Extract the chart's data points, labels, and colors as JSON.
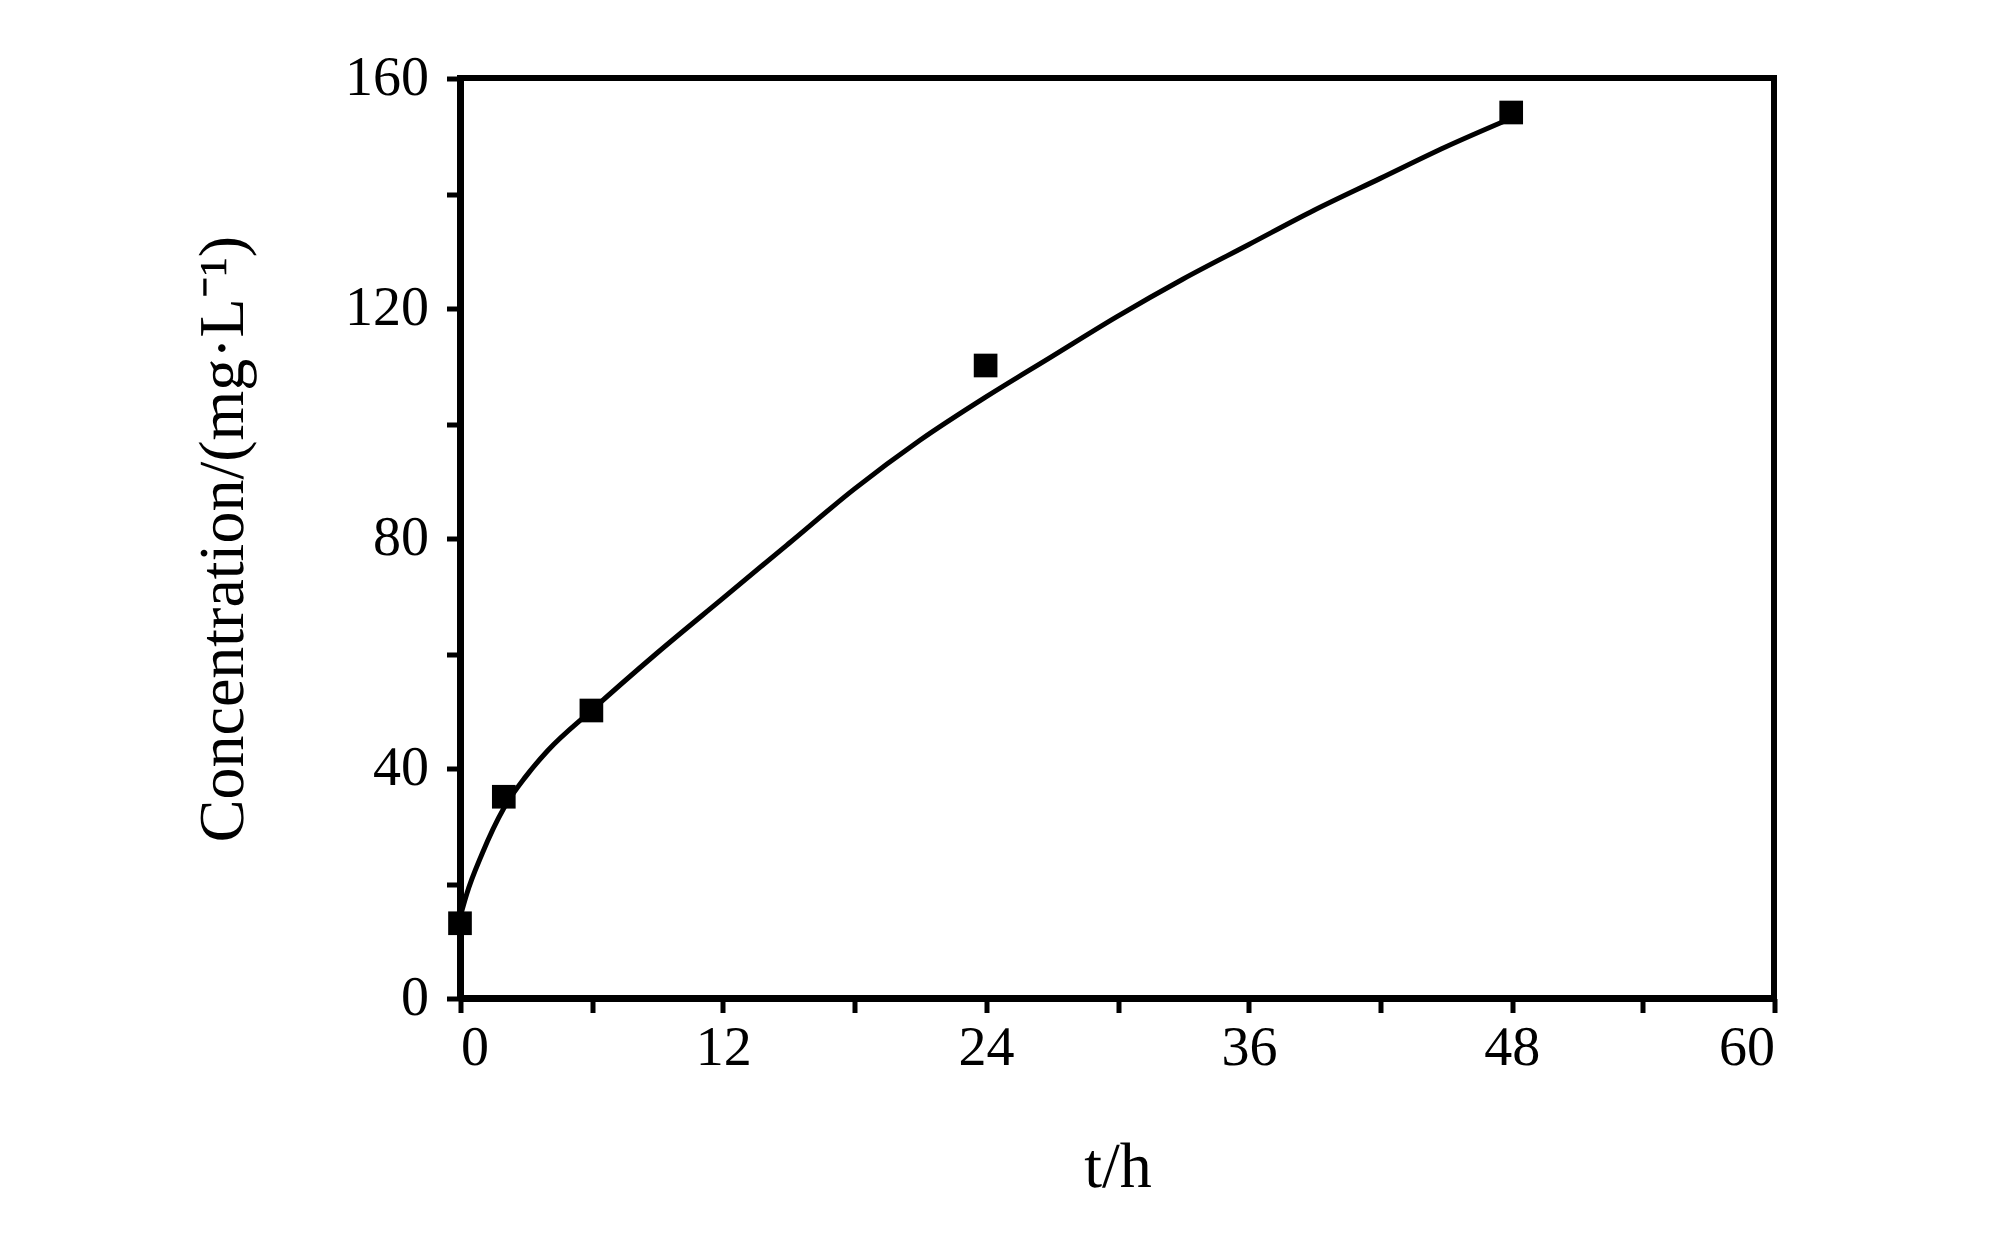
{
  "chart_data": {
    "type": "scatter",
    "xlabel": "t/h",
    "ylabel": "Concentration/(mg·L⁻¹)",
    "xlim": [
      0,
      60
    ],
    "ylim": [
      0,
      160
    ],
    "xticks": [
      0,
      {
        "value": 6,
        "label": null
      },
      12,
      {
        "value": 18,
        "label": null
      },
      24,
      {
        "value": 30,
        "label": null
      },
      36,
      {
        "value": 42,
        "label": null
      },
      48,
      {
        "value": 54,
        "label": null
      },
      60
    ],
    "yticks": [
      0,
      {
        "value": 20,
        "label": null
      },
      40,
      {
        "value": 60,
        "label": null
      },
      80,
      {
        "value": 100,
        "label": null
      },
      120,
      {
        "value": 140,
        "label": null
      },
      160
    ],
    "series": [
      {
        "type": "line",
        "color": "#000000",
        "line_style": "solid",
        "marker": "none",
        "x": [
          0,
          0.3,
          1,
          2,
          3,
          4,
          6,
          9,
          12,
          15,
          18,
          21,
          24,
          27,
          30,
          33,
          36,
          39,
          42,
          45,
          48
        ],
        "values": [
          14,
          18,
          25,
          33,
          38.5,
          43,
          50,
          60,
          69.5,
          79,
          88.5,
          97,
          104.5,
          111.5,
          118.5,
          125,
          131,
          137,
          142.5,
          148,
          153
        ]
      },
      {
        "type": "scatter",
        "color": "#000000",
        "marker": "square",
        "x": [
          0,
          2,
          6,
          24,
          48
        ],
        "values": [
          13,
          35,
          50,
          110,
          154
        ]
      }
    ]
  }
}
